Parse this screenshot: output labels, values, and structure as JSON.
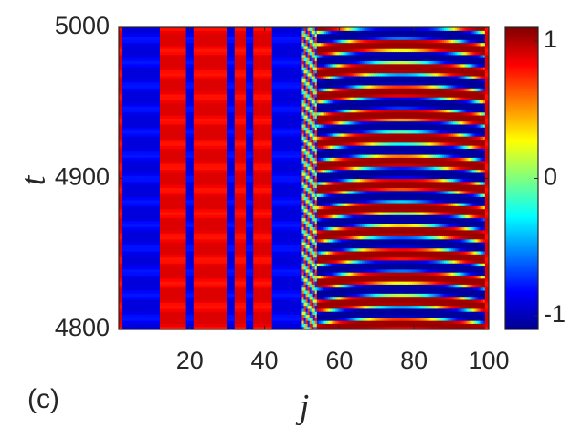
{
  "chart_data": {
    "type": "heatmap",
    "panel_label": "(c)",
    "xlabel": "j",
    "ylabel": "t",
    "xlim": [
      1,
      100
    ],
    "ylim": [
      4800,
      5000
    ],
    "x_ticks": [
      20,
      40,
      60,
      80,
      100
    ],
    "y_ticks": [
      4800,
      4900,
      5000
    ],
    "colorbar": {
      "colormap": "jet",
      "clim": [
        -1.1,
        1.1
      ],
      "ticks": [
        {
          "value": 1,
          "label": "1"
        },
        {
          "value": 0,
          "label": "0"
        },
        {
          "value": -1,
          "label": "-1"
        }
      ]
    },
    "regions": [
      {
        "x_range": [
          1,
          2
        ],
        "value": 0.9,
        "pattern": "static"
      },
      {
        "x_range": [
          2,
          12
        ],
        "value": -0.9,
        "pattern": "static"
      },
      {
        "x_range": [
          12,
          19
        ],
        "value": 0.9,
        "pattern": "static"
      },
      {
        "x_range": [
          19,
          21
        ],
        "value": -0.9,
        "pattern": "static"
      },
      {
        "x_range": [
          21,
          30
        ],
        "value": 0.9,
        "pattern": "static"
      },
      {
        "x_range": [
          30,
          32
        ],
        "value": -0.9,
        "pattern": "static"
      },
      {
        "x_range": [
          32,
          35
        ],
        "value": 0.9,
        "pattern": "static"
      },
      {
        "x_range": [
          35,
          37
        ],
        "value": -0.9,
        "pattern": "static"
      },
      {
        "x_range": [
          37,
          42
        ],
        "value": 0.9,
        "pattern": "static"
      },
      {
        "x_range": [
          42,
          50
        ],
        "value": -0.9,
        "pattern": "static"
      },
      {
        "x_range": [
          50,
          54
        ],
        "value": 0,
        "pattern": "mixed"
      },
      {
        "x_range": [
          54,
          99
        ],
        "value": 0,
        "pattern": "oscillating"
      },
      {
        "x_range": [
          99,
          100
        ],
        "value": 0.9,
        "pattern": "static"
      }
    ],
    "oscillation": {
      "x_range": [
        54,
        99
      ],
      "band_count": 13,
      "period_t": 15.4
    }
  },
  "colors": {
    "text": "#262626",
    "axes": "#262626",
    "background": "#ffffff"
  }
}
